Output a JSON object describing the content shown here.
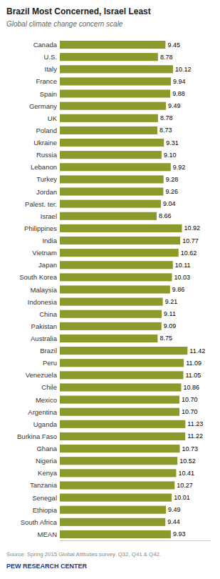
{
  "chart_data": {
    "type": "bar",
    "orientation": "horizontal",
    "title": "Brazil Most Concerned, Israel Least",
    "subtitle": "Global climate change concern scale",
    "annotations": [
      "Source: Spring 2015 Global Attitudes survey. Q32, Q41 & Q42.",
      "PEW RESEARCH CENTER"
    ],
    "categories": [
      "Canada",
      "U.S.",
      "Italy",
      "France",
      "Spain",
      "Germany",
      "UK",
      "Poland",
      "Ukraine",
      "Russia",
      "Lebanon",
      "Turkey",
      "Jordan",
      "Palest. ter.",
      "Israel",
      "Philippines",
      "India",
      "Vietnam",
      "Japan",
      "South Korea",
      "Malaysia",
      "Indonesia",
      "China",
      "Pakistan",
      "Australia",
      "Brazil",
      "Peru",
      "Venezuela",
      "Chile",
      "Mexico",
      "Argentina",
      "Uganda",
      "Burkina Faso",
      "Ghana",
      "Nigeria",
      "Kenya",
      "Tanzania",
      "Senegal",
      "Ethiopia",
      "South Africa",
      "MEAN"
    ],
    "values": [
      9.45,
      8.78,
      10.12,
      9.94,
      9.88,
      9.49,
      8.78,
      8.73,
      9.31,
      9.1,
      9.92,
      9.28,
      9.26,
      9.04,
      8.66,
      10.92,
      10.77,
      10.62,
      10.11,
      10.03,
      9.86,
      9.21,
      9.11,
      9.09,
      8.75,
      11.42,
      11.09,
      11.05,
      10.86,
      10.7,
      10.7,
      11.23,
      11.22,
      10.73,
      10.52,
      10.41,
      10.27,
      10.01,
      9.49,
      9.44,
      9.93
    ],
    "value_labels": [
      "9.45",
      "8.78",
      "10.12",
      "9.94",
      "9.88",
      "9.49",
      "8.78",
      "8.73",
      "9.31",
      "9.10",
      "9.92",
      "9.28",
      "9.26",
      "9.04",
      "8.66",
      "10.92",
      "10.77",
      "10.62",
      "10.11",
      "10.03",
      "9.86",
      "9.21",
      "9.11",
      "9.09",
      "8.75",
      "11.42",
      "11.09",
      "11.05",
      "10.86",
      "10.70",
      "10.70",
      "11.23",
      "11.22",
      "10.73",
      "10.52",
      "10.41",
      "10.27",
      "10.01",
      "9.49",
      "9.44",
      "9.93"
    ],
    "color": "#8B9A2A",
    "xlim": [
      0,
      13.5
    ],
    "data_labels": true,
    "tick_labels": "y",
    "grid": false
  }
}
